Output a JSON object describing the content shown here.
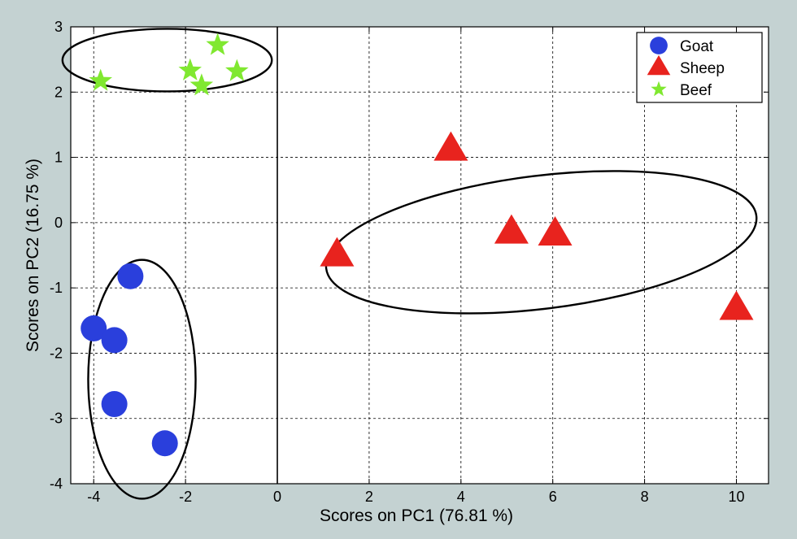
{
  "colors": {
    "figure_background": "#c4d2d2",
    "plot_background": "#ffffff",
    "grid": "#000000",
    "goat": "#2a3fdc",
    "sheep": "#e8231e",
    "beef": "#80e830"
  },
  "chart_data": {
    "type": "scatter",
    "title": "",
    "xlabel": "Scores on PC1 (76.81 %)",
    "ylabel": "Scores on PC2 (16.75 %)",
    "xlim": [
      -4.5,
      10.7
    ],
    "ylim": [
      -4,
      3
    ],
    "xticks": [
      -4,
      -2,
      0,
      2,
      4,
      6,
      8,
      10
    ],
    "yticks": [
      -4,
      -3,
      -2,
      -1,
      0,
      1,
      2,
      3
    ],
    "xtick_labels": [
      "-4",
      "-2",
      "0",
      "2",
      "4",
      "6",
      "8",
      "10"
    ],
    "ytick_labels": [
      "-4",
      "-3",
      "-2",
      "-1",
      "0",
      "1",
      "2",
      "3"
    ],
    "grid": true,
    "grid_style": "dashed",
    "reference_line_x": 0,
    "legend_position": "top-right",
    "series": [
      {
        "name": "Goat",
        "marker": "circle",
        "color": "#2a3fdc",
        "points": [
          [
            -3.2,
            -0.82
          ],
          [
            -4.0,
            -1.62
          ],
          [
            -3.55,
            -1.8
          ],
          [
            -3.55,
            -2.78
          ],
          [
            -2.45,
            -3.38
          ]
        ]
      },
      {
        "name": "Sheep",
        "marker": "triangle",
        "color": "#e8231e",
        "points": [
          [
            3.78,
            1.12
          ],
          [
            1.3,
            -0.5
          ],
          [
            5.1,
            -0.15
          ],
          [
            6.05,
            -0.18
          ],
          [
            10.0,
            -1.32
          ]
        ]
      },
      {
        "name": "Beef",
        "marker": "star",
        "color": "#80e830",
        "points": [
          [
            -1.3,
            2.72
          ],
          [
            -3.85,
            2.17
          ],
          [
            -1.9,
            2.33
          ],
          [
            -1.65,
            2.1
          ],
          [
            -0.88,
            2.32
          ]
        ]
      }
    ],
    "ellipses": [
      {
        "group": "Beef",
        "center": [
          -2.4,
          2.49
        ],
        "radii": [
          2.28,
          0.48
        ],
        "angle_deg": 0
      },
      {
        "group": "Sheep",
        "center": [
          5.75,
          -0.3
        ],
        "radii": [
          4.72,
          1.02
        ],
        "angle_deg": -7
      },
      {
        "group": "Goat",
        "center": [
          -2.95,
          -2.4
        ],
        "radii": [
          1.17,
          1.83
        ],
        "angle_deg": 0
      }
    ]
  }
}
